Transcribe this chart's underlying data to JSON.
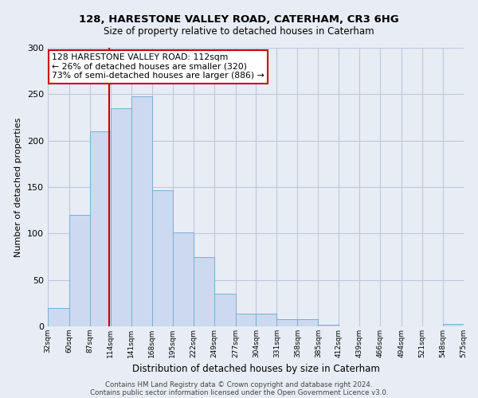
{
  "title1": "128, HARESTONE VALLEY ROAD, CATERHAM, CR3 6HG",
  "title2": "Size of property relative to detached houses in Caterham",
  "xlabel": "Distribution of detached houses by size in Caterham",
  "ylabel": "Number of detached properties",
  "footer1": "Contains HM Land Registry data © Crown copyright and database right 2024.",
  "footer2": "Contains public sector information licensed under the Open Government Licence v3.0.",
  "annotation_line1": "128 HARESTONE VALLEY ROAD: 112sqm",
  "annotation_line2": "← 26% of detached houses are smaller (320)",
  "annotation_line3": "73% of semi-detached houses are larger (886) →",
  "subject_value": 112,
  "bin_edges": [
    32,
    60,
    87,
    114,
    141,
    168,
    195,
    222,
    249,
    277,
    304,
    331,
    358,
    385,
    412,
    439,
    466,
    494,
    521,
    548,
    575
  ],
  "bar_heights": [
    20,
    120,
    210,
    235,
    248,
    147,
    101,
    75,
    35,
    14,
    14,
    8,
    8,
    2,
    0,
    0,
    0,
    0,
    0,
    3
  ],
  "bar_color": "#ccd9ee",
  "bar_edge_color": "#7aadd4",
  "subject_line_color": "#cc0000",
  "annotation_box_edge_color": "#cc0000",
  "grid_color": "#bec8da",
  "background_color": "#e8edf5",
  "ylim": [
    0,
    300
  ],
  "yticks": [
    0,
    50,
    100,
    150,
    200,
    250,
    300
  ]
}
